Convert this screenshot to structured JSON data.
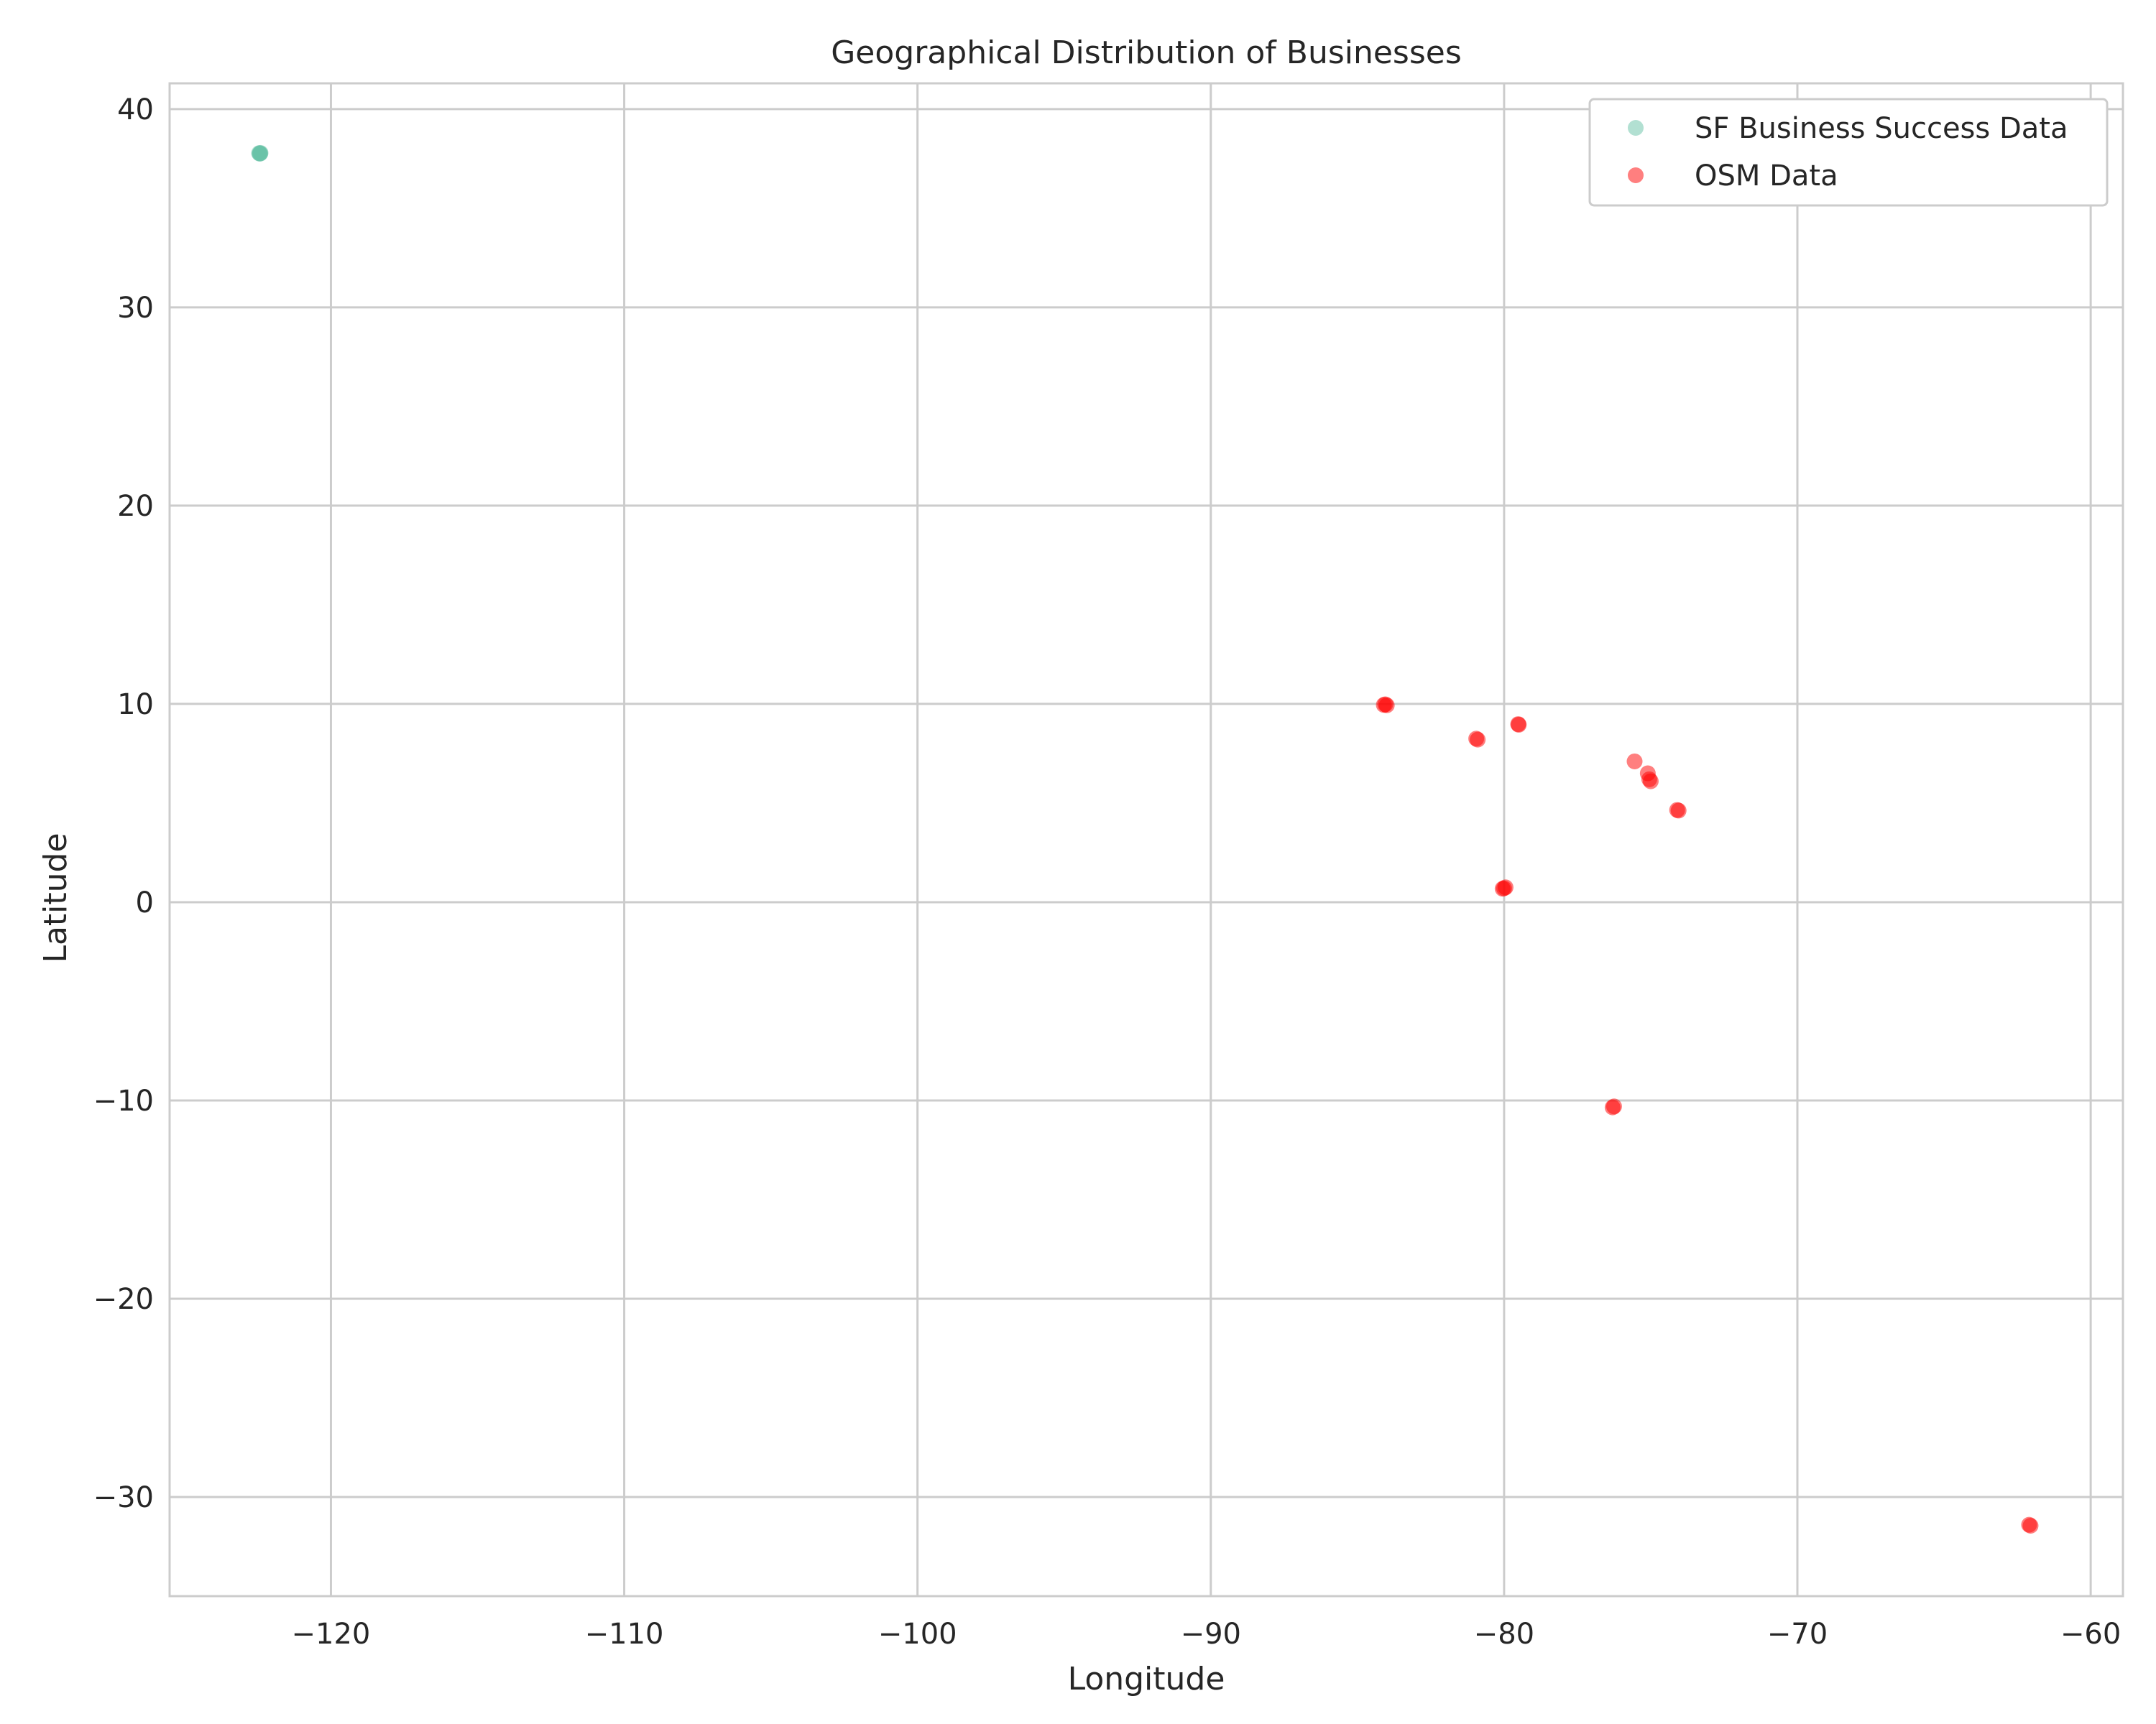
{
  "chart_data": {
    "type": "scatter",
    "title": "Geographical Distribution of Businesses",
    "xlabel": "Longitude",
    "ylabel": "Latitude",
    "xlim": [
      -125.5,
      -58.9
    ],
    "ylim": [
      -35.0,
      41.3
    ],
    "xticks": [
      -120,
      -110,
      -100,
      -90,
      -80,
      -70,
      -60
    ],
    "yticks": [
      -30,
      -20,
      -10,
      0,
      10,
      20,
      30,
      40
    ],
    "xtick_labels": [
      "−120",
      "−110",
      "−100",
      "−90",
      "−80",
      "−70",
      "−60"
    ],
    "ytick_labels": [
      "−30",
      "−20",
      "−10",
      "0",
      "10",
      "20",
      "30",
      "40"
    ],
    "grid": true,
    "legend_position": "top-right",
    "series": [
      {
        "name": "SF Business Success Data",
        "color": "#66c2a5",
        "alpha": 0.5,
        "points": [
          [
            -122.45,
            37.78
          ],
          [
            -122.42,
            37.77
          ],
          [
            -122.4,
            37.79
          ],
          [
            -122.41,
            37.76
          ],
          [
            -122.43,
            37.75
          ]
        ]
      },
      {
        "name": "OSM Data",
        "color": "#ff0000",
        "alpha": 0.5,
        "points": [
          [
            -84.1,
            9.95
          ],
          [
            -84.05,
            9.98
          ],
          [
            -84.0,
            9.93
          ],
          [
            -80.9,
            8.2
          ],
          [
            -80.95,
            8.25
          ],
          [
            -79.5,
            8.95
          ],
          [
            -79.52,
            8.98
          ],
          [
            -75.55,
            7.1
          ],
          [
            -75.1,
            6.5
          ],
          [
            -75.05,
            6.2
          ],
          [
            -75.0,
            6.1
          ],
          [
            -74.1,
            4.65
          ],
          [
            -74.05,
            4.62
          ],
          [
            -80.0,
            0.7
          ],
          [
            -79.95,
            0.75
          ],
          [
            -80.05,
            0.68
          ],
          [
            -76.3,
            -10.35
          ],
          [
            -76.25,
            -10.3
          ],
          [
            -62.1,
            -31.4
          ],
          [
            -62.05,
            -31.45
          ]
        ]
      }
    ]
  }
}
